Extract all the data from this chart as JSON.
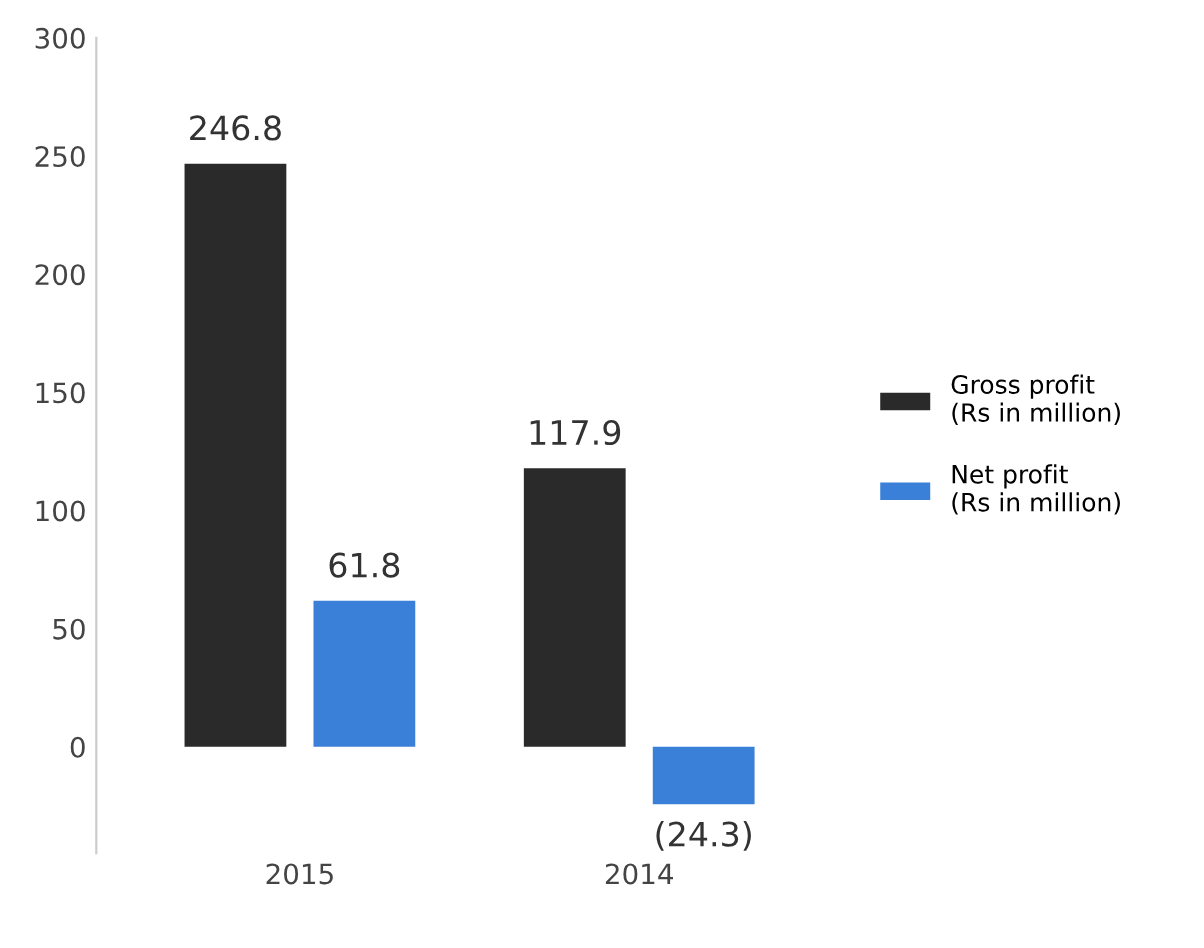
{
  "chart_data": {
    "type": "bar",
    "categories": [
      "2015",
      "2014"
    ],
    "series": [
      {
        "name": "Gross profit\n(Rs in million)",
        "color": "#2a2a2a",
        "values": [
          246.8,
          117.9
        ],
        "value_labels": [
          "246.8",
          "117.9"
        ]
      },
      {
        "name": "Net profit\n(Rs in million)",
        "color": "#3b80d8",
        "values": [
          61.8,
          -24.3
        ],
        "value_labels": [
          "61.8",
          "(24.3)"
        ]
      }
    ],
    "ylim": [
      -45,
      300
    ],
    "yticks": [
      0,
      50,
      100,
      150,
      200,
      250,
      300
    ],
    "grid": false,
    "legend": "right"
  }
}
